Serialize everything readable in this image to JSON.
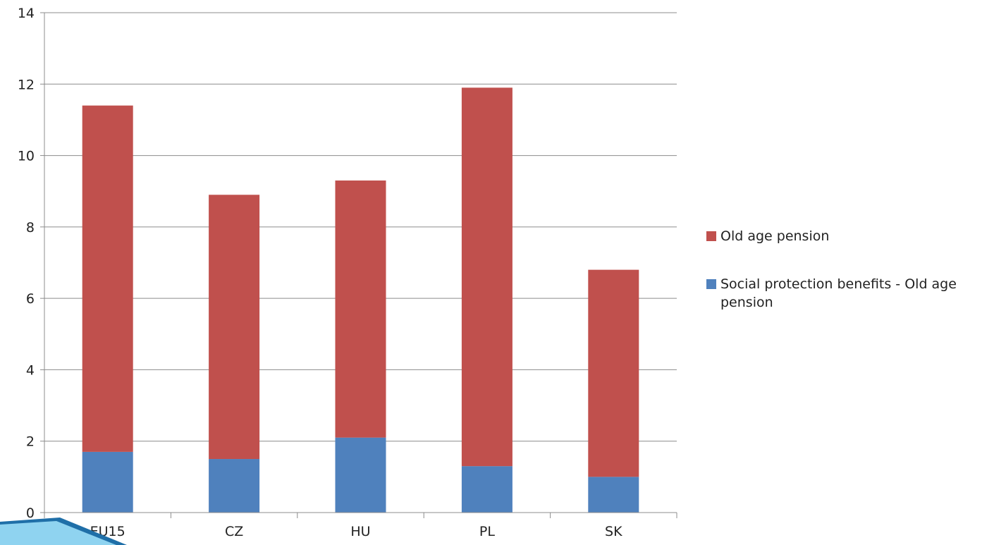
{
  "chart_data": {
    "type": "bar",
    "stacked": true,
    "categories": [
      "EU15",
      "CZ",
      "HU",
      "PL",
      "SK"
    ],
    "series": [
      {
        "name": "Social protection benefits - Old age pension",
        "values": [
          1.7,
          1.5,
          2.1,
          1.3,
          1.0
        ],
        "color": "#4F81BD"
      },
      {
        "name": "Old age pension",
        "values": [
          9.7,
          7.4,
          7.2,
          10.6,
          5.8
        ],
        "color": "#C0504D"
      }
    ],
    "ylim": [
      0,
      14
    ],
    "yticks": [
      0,
      2,
      4,
      6,
      8,
      10,
      12,
      14
    ],
    "grid": true,
    "legend": "right",
    "title": "",
    "xlabel": "",
    "ylabel": ""
  },
  "legend_items": [
    {
      "label": "Old age pension",
      "color": "#C0504D"
    },
    {
      "label": "Social protection benefits - Old age pension",
      "color": "#4F81BD"
    }
  ],
  "gridline_color": "#8c8c8c",
  "axis_color": "#8c8c8c"
}
